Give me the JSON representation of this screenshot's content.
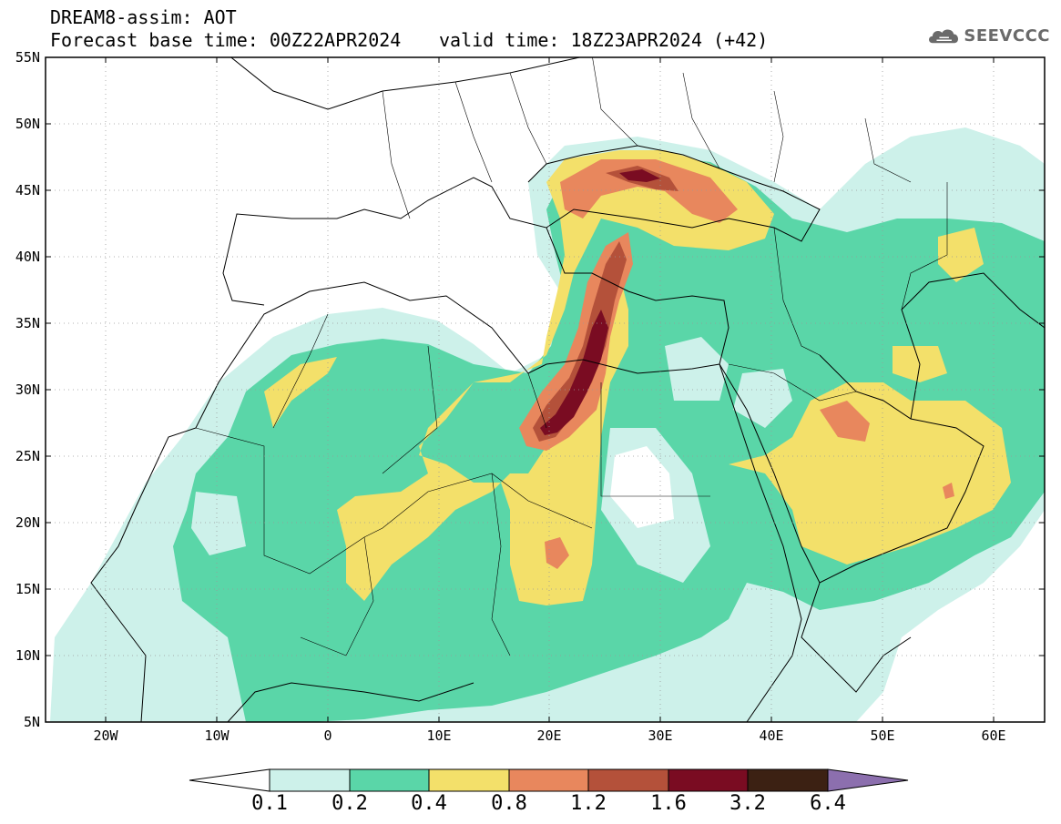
{
  "header": {
    "line1": "DREAM8-assim: AOT",
    "line2": "Forecast base time: 00Z22APR2024",
    "valid": "valid time: 18Z23APR2024 (+42)"
  },
  "logo": {
    "text": "SEEVCCC",
    "icon": "cloud-icon",
    "color": "#6a6a6a"
  },
  "map": {
    "lon_range": [
      -25,
      65
    ],
    "lat_range": [
      5,
      55
    ],
    "lat_labels": [
      "55N",
      "50N",
      "45N",
      "40N",
      "35N",
      "30N",
      "25N",
      "20N",
      "15N",
      "10N",
      "5N"
    ],
    "lon_labels": [
      "20W",
      "10W",
      "0",
      "10E",
      "20E",
      "30E",
      "40E",
      "50E",
      "60E"
    ],
    "field": "AOT",
    "colors": {
      "c1": "#cdf1ea",
      "c2": "#5ad6a8",
      "c3": "#f3e06a",
      "c4": "#e8875d",
      "c5": "#b4513a",
      "c6": "#7a0c22",
      "c7": "#3c2113",
      "c8": "#8c6fae"
    }
  },
  "colorbar": {
    "labels": [
      "0.1",
      "0.2",
      "0.4",
      "0.8",
      "1.2",
      "1.6",
      "3.2",
      "6.4"
    ]
  }
}
